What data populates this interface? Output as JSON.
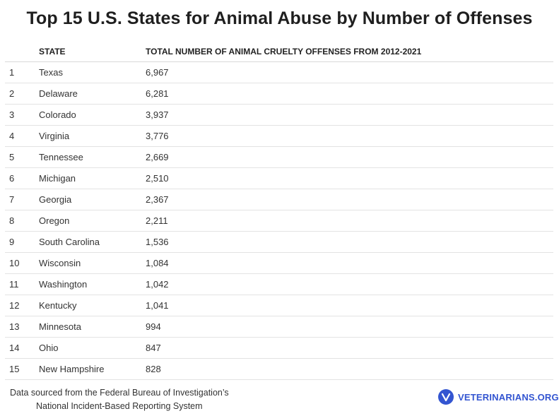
{
  "title": "Top 15 U.S. States for Animal Abuse by Number of Offenses",
  "chart_data": {
    "type": "table",
    "columns": [
      "",
      "STATE",
      "TOTAL NUMBER OF ANIMAL CRUELTY OFFENSES FROM 2012-2021"
    ],
    "rows": [
      [
        "1",
        "Texas",
        "6,967"
      ],
      [
        "2",
        "Delaware",
        "6,281"
      ],
      [
        "3",
        "Colorado",
        "3,937"
      ],
      [
        "4",
        "Virginia",
        "3,776"
      ],
      [
        "5",
        "Tennessee",
        "2,669"
      ],
      [
        "6",
        "Michigan",
        "2,510"
      ],
      [
        "7",
        "Georgia",
        "2,367"
      ],
      [
        "8",
        "Oregon",
        "2,211"
      ],
      [
        "9",
        "South Carolina",
        "1,536"
      ],
      [
        "10",
        "Wisconsin",
        "1,084"
      ],
      [
        "11",
        "Washington",
        "1,042"
      ],
      [
        "12",
        "Kentucky",
        "1,041"
      ],
      [
        "13",
        "Minnesota",
        "994"
      ],
      [
        "14",
        "Ohio",
        "847"
      ],
      [
        "15",
        "New Hampshire",
        "828"
      ]
    ]
  },
  "footer": {
    "source_line1": "Data sourced from the Federal Bureau of Investigation’s",
    "source_line2": "National Incident-Based Reporting System",
    "brand": "VETERINARIANS.ORG",
    "brand_icon": "veterinarians-logo-icon",
    "brand_color": "#3355d1"
  }
}
